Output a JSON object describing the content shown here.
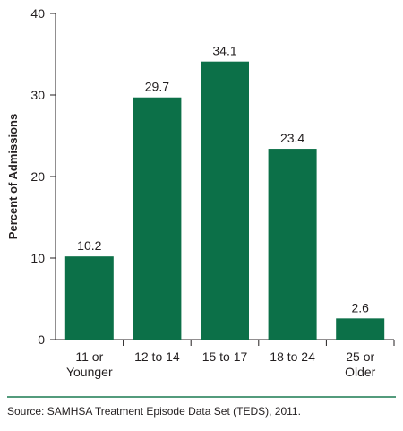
{
  "chart_data": {
    "type": "bar",
    "categories": [
      [
        "11 or",
        "Younger"
      ],
      [
        "12 to 14"
      ],
      [
        "15 to 17"
      ],
      [
        "18 to 24"
      ],
      [
        "25 or",
        "Older"
      ]
    ],
    "values": [
      10.2,
      29.7,
      34.1,
      23.4,
      2.6
    ],
    "data_labels": [
      "10.2",
      "29.7",
      "34.1",
      "23.4",
      "2.6"
    ],
    "title": "",
    "xlabel": "",
    "ylabel": "Percent of Admissions",
    "ylim": [
      0,
      40
    ],
    "yticks": [
      0,
      10,
      20,
      30,
      40
    ],
    "grid": false,
    "bar_color": "#0c7048",
    "rule_color": "#1a7a50"
  },
  "footer": {
    "source": "Source: SAMHSA Treatment Episode Data Set (TEDS), 2011."
  }
}
